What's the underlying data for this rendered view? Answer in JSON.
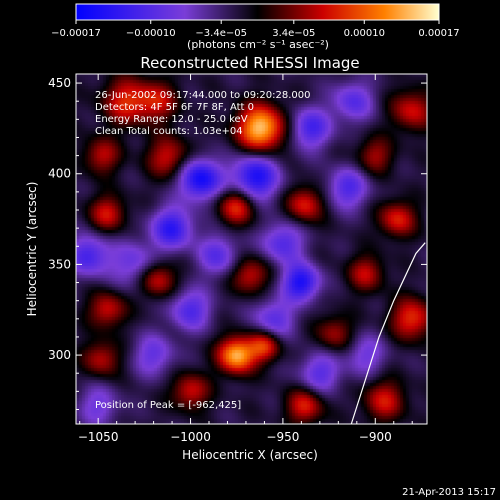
{
  "chart_data": {
    "type": "heatmap",
    "title": "Reconstructed RHESSI Image",
    "xlabel": "Heliocentric X (arcsec)",
    "ylabel": "Heliocentric Y (arcsec)",
    "xlim": [
      -1062,
      -872
    ],
    "ylim": [
      262,
      455
    ],
    "xticks": [
      -1050,
      -1000,
      -950,
      -900
    ],
    "xtick_labels": [
      "−1050",
      "−1000",
      "−950",
      "−900"
    ],
    "yticks": [
      300,
      350,
      400,
      450
    ],
    "ytick_labels": [
      "300",
      "350",
      "400",
      "450"
    ],
    "colorbar": {
      "range": [
        -0.00017,
        0.00017
      ],
      "tick_values": [
        -0.00017,
        -0.0001,
        -3.4e-05,
        3.4e-05,
        0.0001,
        0.00017
      ],
      "tick_labels": [
        "−0.00017",
        "−0.00010",
        "−3.4e−05",
        "3.4e−05",
        "0.00010",
        "0.00017"
      ],
      "unit_label": "(photons cm⁻² s⁻¹ asec⁻²)"
    },
    "annotations": {
      "time_range": "26-Jun-2002 09:17:44.000 to 09:20:28.000",
      "detectors": "Detectors: 4F 5F 6F 7F 8F, Att 0",
      "energy_range": "Energy Range: 12.0 - 25.0 keV",
      "clean_counts": "Clean    Total counts: 1.03e+04",
      "position_of_peak": "Position of Peak = [-962,425]"
    },
    "peak": {
      "x": -962,
      "y": 425
    },
    "limb_line": [
      [
        -913,
        262
      ],
      [
        -898,
        310
      ],
      [
        -890,
        330
      ],
      [
        -878,
        356
      ],
      [
        -873,
        362
      ]
    ],
    "blobs": [
      {
        "x": -962,
        "y": 425,
        "amp": 1.0,
        "s": 9
      },
      {
        "x": -1035,
        "y": 440,
        "amp": 0.55,
        "s": 9
      },
      {
        "x": -1018,
        "y": 440,
        "amp": 0.45,
        "s": 8
      },
      {
        "x": -1012,
        "y": 409,
        "amp": 0.5,
        "s": 8
      },
      {
        "x": -1048,
        "y": 410,
        "amp": 0.45,
        "s": 7
      },
      {
        "x": -995,
        "y": 397,
        "amp": -0.8,
        "s": 8
      },
      {
        "x": -965,
        "y": 398,
        "amp": -0.75,
        "s": 9
      },
      {
        "x": -935,
        "y": 425,
        "amp": -0.55,
        "s": 8
      },
      {
        "x": -912,
        "y": 440,
        "amp": -0.45,
        "s": 8
      },
      {
        "x": -900,
        "y": 410,
        "amp": 0.4,
        "s": 7
      },
      {
        "x": -880,
        "y": 435,
        "amp": 0.5,
        "s": 8
      },
      {
        "x": -975,
        "y": 382,
        "amp": 0.6,
        "s": 7
      },
      {
        "x": -938,
        "y": 383,
        "amp": 0.55,
        "s": 7
      },
      {
        "x": -1045,
        "y": 378,
        "amp": 0.5,
        "s": 7
      },
      {
        "x": -1010,
        "y": 370,
        "amp": -0.65,
        "s": 8
      },
      {
        "x": -915,
        "y": 392,
        "amp": -0.5,
        "s": 8
      },
      {
        "x": -888,
        "y": 375,
        "amp": 0.55,
        "s": 7
      },
      {
        "x": -1055,
        "y": 355,
        "amp": -0.55,
        "s": 8
      },
      {
        "x": -1030,
        "y": 350,
        "amp": -0.4,
        "s": 9
      },
      {
        "x": -985,
        "y": 355,
        "amp": -0.45,
        "s": 8
      },
      {
        "x": -950,
        "y": 362,
        "amp": -0.5,
        "s": 8
      },
      {
        "x": -1018,
        "y": 342,
        "amp": 0.55,
        "s": 7
      },
      {
        "x": -968,
        "y": 344,
        "amp": 0.5,
        "s": 7
      },
      {
        "x": -940,
        "y": 340,
        "amp": -0.75,
        "s": 7
      },
      {
        "x": -905,
        "y": 345,
        "amp": 0.45,
        "s": 7
      },
      {
        "x": -880,
        "y": 320,
        "amp": 0.6,
        "s": 8
      },
      {
        "x": -1045,
        "y": 325,
        "amp": 0.5,
        "s": 7
      },
      {
        "x": -1048,
        "y": 298,
        "amp": 0.45,
        "s": 7
      },
      {
        "x": -1000,
        "y": 325,
        "amp": -0.5,
        "s": 8
      },
      {
        "x": -955,
        "y": 320,
        "amp": -0.45,
        "s": 8
      },
      {
        "x": -922,
        "y": 312,
        "amp": 0.4,
        "s": 7
      },
      {
        "x": -975,
        "y": 300,
        "amp": 0.95,
        "s": 7
      },
      {
        "x": -960,
        "y": 305,
        "amp": 0.6,
        "s": 6
      },
      {
        "x": -1020,
        "y": 300,
        "amp": -0.4,
        "s": 8
      },
      {
        "x": -930,
        "y": 290,
        "amp": -0.45,
        "s": 8
      },
      {
        "x": -1000,
        "y": 280,
        "amp": 0.5,
        "s": 7
      },
      {
        "x": -1050,
        "y": 272,
        "amp": -0.35,
        "s": 8
      },
      {
        "x": -938,
        "y": 272,
        "amp": 0.55,
        "s": 7
      },
      {
        "x": -895,
        "y": 275,
        "amp": 0.5,
        "s": 8
      },
      {
        "x": -905,
        "y": 300,
        "amp": -0.35,
        "s": 8
      }
    ]
  },
  "footer": {
    "date": "21-Apr-2013 15:17"
  }
}
